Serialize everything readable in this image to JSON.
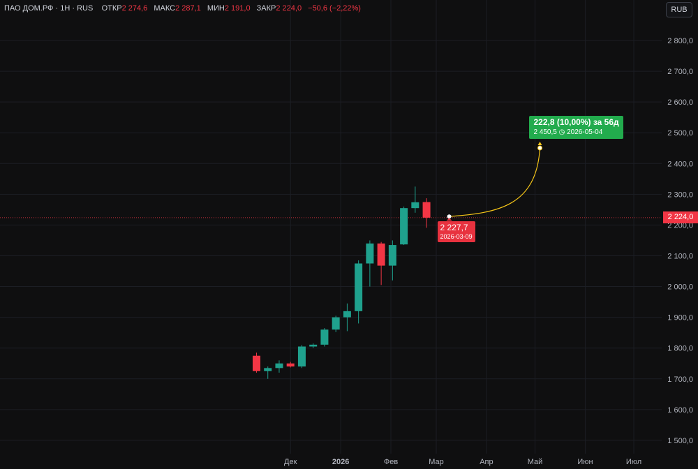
{
  "header": {
    "symbol": "ПАО ДОМ.РФ",
    "interval": "1Н",
    "exchange": "RUS",
    "open_label": "ОТКР",
    "open_value": "2 274,6",
    "high_label": "МАКС",
    "high_value": "2 287,1",
    "low_label": "МИН",
    "low_value": "2 191,0",
    "close_label": "ЗАКР",
    "close_value": "2 224,0",
    "change": "−50,6 (−2,22%)"
  },
  "currency_button": "RUB",
  "last_price_tag": "2 224,0",
  "annotation": {
    "target_line1": "222,8 (10,00%) за 56д",
    "target_line2": "2 450,5 ◷ 2026-05-04",
    "start_line1": "2 227,7",
    "start_line2": "2026-03-09",
    "start_price": 2227.7,
    "target_price": 2450.5,
    "start_date": "2026-03-09",
    "target_date": "2026-05-04"
  },
  "colors": {
    "up": "#1fa18d",
    "down": "#f23645",
    "projection": "#f5c518",
    "label_green": "#22ab4d",
    "label_red": "#e8323f",
    "last_price_line": "#f23645"
  },
  "chart_data": {
    "type": "candlestick",
    "interval": "1W",
    "currency": "RUB",
    "y_ticks": [
      "1 500,0",
      "1 600,0",
      "1 700,0",
      "1 800,0",
      "1 900,0",
      "2 000,0",
      "2 100,0",
      "2 200,0",
      "2 300,0",
      "2 400,0",
      "2 500,0",
      "2 600,0",
      "2 700,0",
      "2 800,0"
    ],
    "y_tick_values": [
      1500,
      1600,
      1700,
      1800,
      1900,
      2000,
      2100,
      2200,
      2300,
      2400,
      2500,
      2600,
      2700,
      2800
    ],
    "x_ticks": [
      {
        "label": "Дек",
        "date": "2025-12-01"
      },
      {
        "label": "2026",
        "date": "2026-01-01",
        "bold": true
      },
      {
        "label": "Фев",
        "date": "2026-02-01"
      },
      {
        "label": "Мар",
        "date": "2026-03-01"
      },
      {
        "label": "Апр",
        "date": "2026-04-01"
      },
      {
        "label": "Май",
        "date": "2026-05-01"
      },
      {
        "label": "Июн",
        "date": "2026-06-01"
      },
      {
        "label": "Июл",
        "date": "2026-07-01"
      }
    ],
    "last_price": 2224.0,
    "candles": [
      {
        "date": "2025-11-10",
        "open": 1775,
        "high": 1785,
        "low": 1720,
        "close": 1725
      },
      {
        "date": "2025-11-17",
        "open": 1725,
        "high": 1740,
        "low": 1700,
        "close": 1735
      },
      {
        "date": "2025-11-24",
        "open": 1735,
        "high": 1760,
        "low": 1720,
        "close": 1750
      },
      {
        "date": "2025-12-01",
        "open": 1750,
        "high": 1755,
        "low": 1737,
        "close": 1740
      },
      {
        "date": "2025-12-08",
        "open": 1740,
        "high": 1810,
        "low": 1735,
        "close": 1805
      },
      {
        "date": "2025-12-15",
        "open": 1805,
        "high": 1815,
        "low": 1800,
        "close": 1811
      },
      {
        "date": "2025-12-22",
        "open": 1811,
        "high": 1865,
        "low": 1805,
        "close": 1860
      },
      {
        "date": "2025-12-29",
        "open": 1860,
        "high": 1905,
        "low": 1852,
        "close": 1900
      },
      {
        "date": "2026-01-05",
        "open": 1900,
        "high": 1945,
        "low": 1855,
        "close": 1920
      },
      {
        "date": "2026-01-12",
        "open": 1920,
        "high": 2085,
        "low": 1880,
        "close": 2075
      },
      {
        "date": "2026-01-19",
        "open": 2075,
        "high": 2150,
        "low": 2000,
        "close": 2140
      },
      {
        "date": "2026-01-26",
        "open": 2140,
        "high": 2145,
        "low": 2005,
        "close": 2068
      },
      {
        "date": "2026-02-02",
        "open": 2068,
        "high": 2150,
        "low": 2020,
        "close": 2135
      },
      {
        "date": "2026-02-09",
        "open": 2137,
        "high": 2260,
        "low": 2135,
        "close": 2255
      },
      {
        "date": "2026-02-16",
        "open": 2255,
        "high": 2325,
        "low": 2240,
        "close": 2274
      },
      {
        "date": "2026-02-23",
        "open": 2274.6,
        "high": 2287.1,
        "low": 2191.0,
        "close": 2224.0
      }
    ]
  }
}
